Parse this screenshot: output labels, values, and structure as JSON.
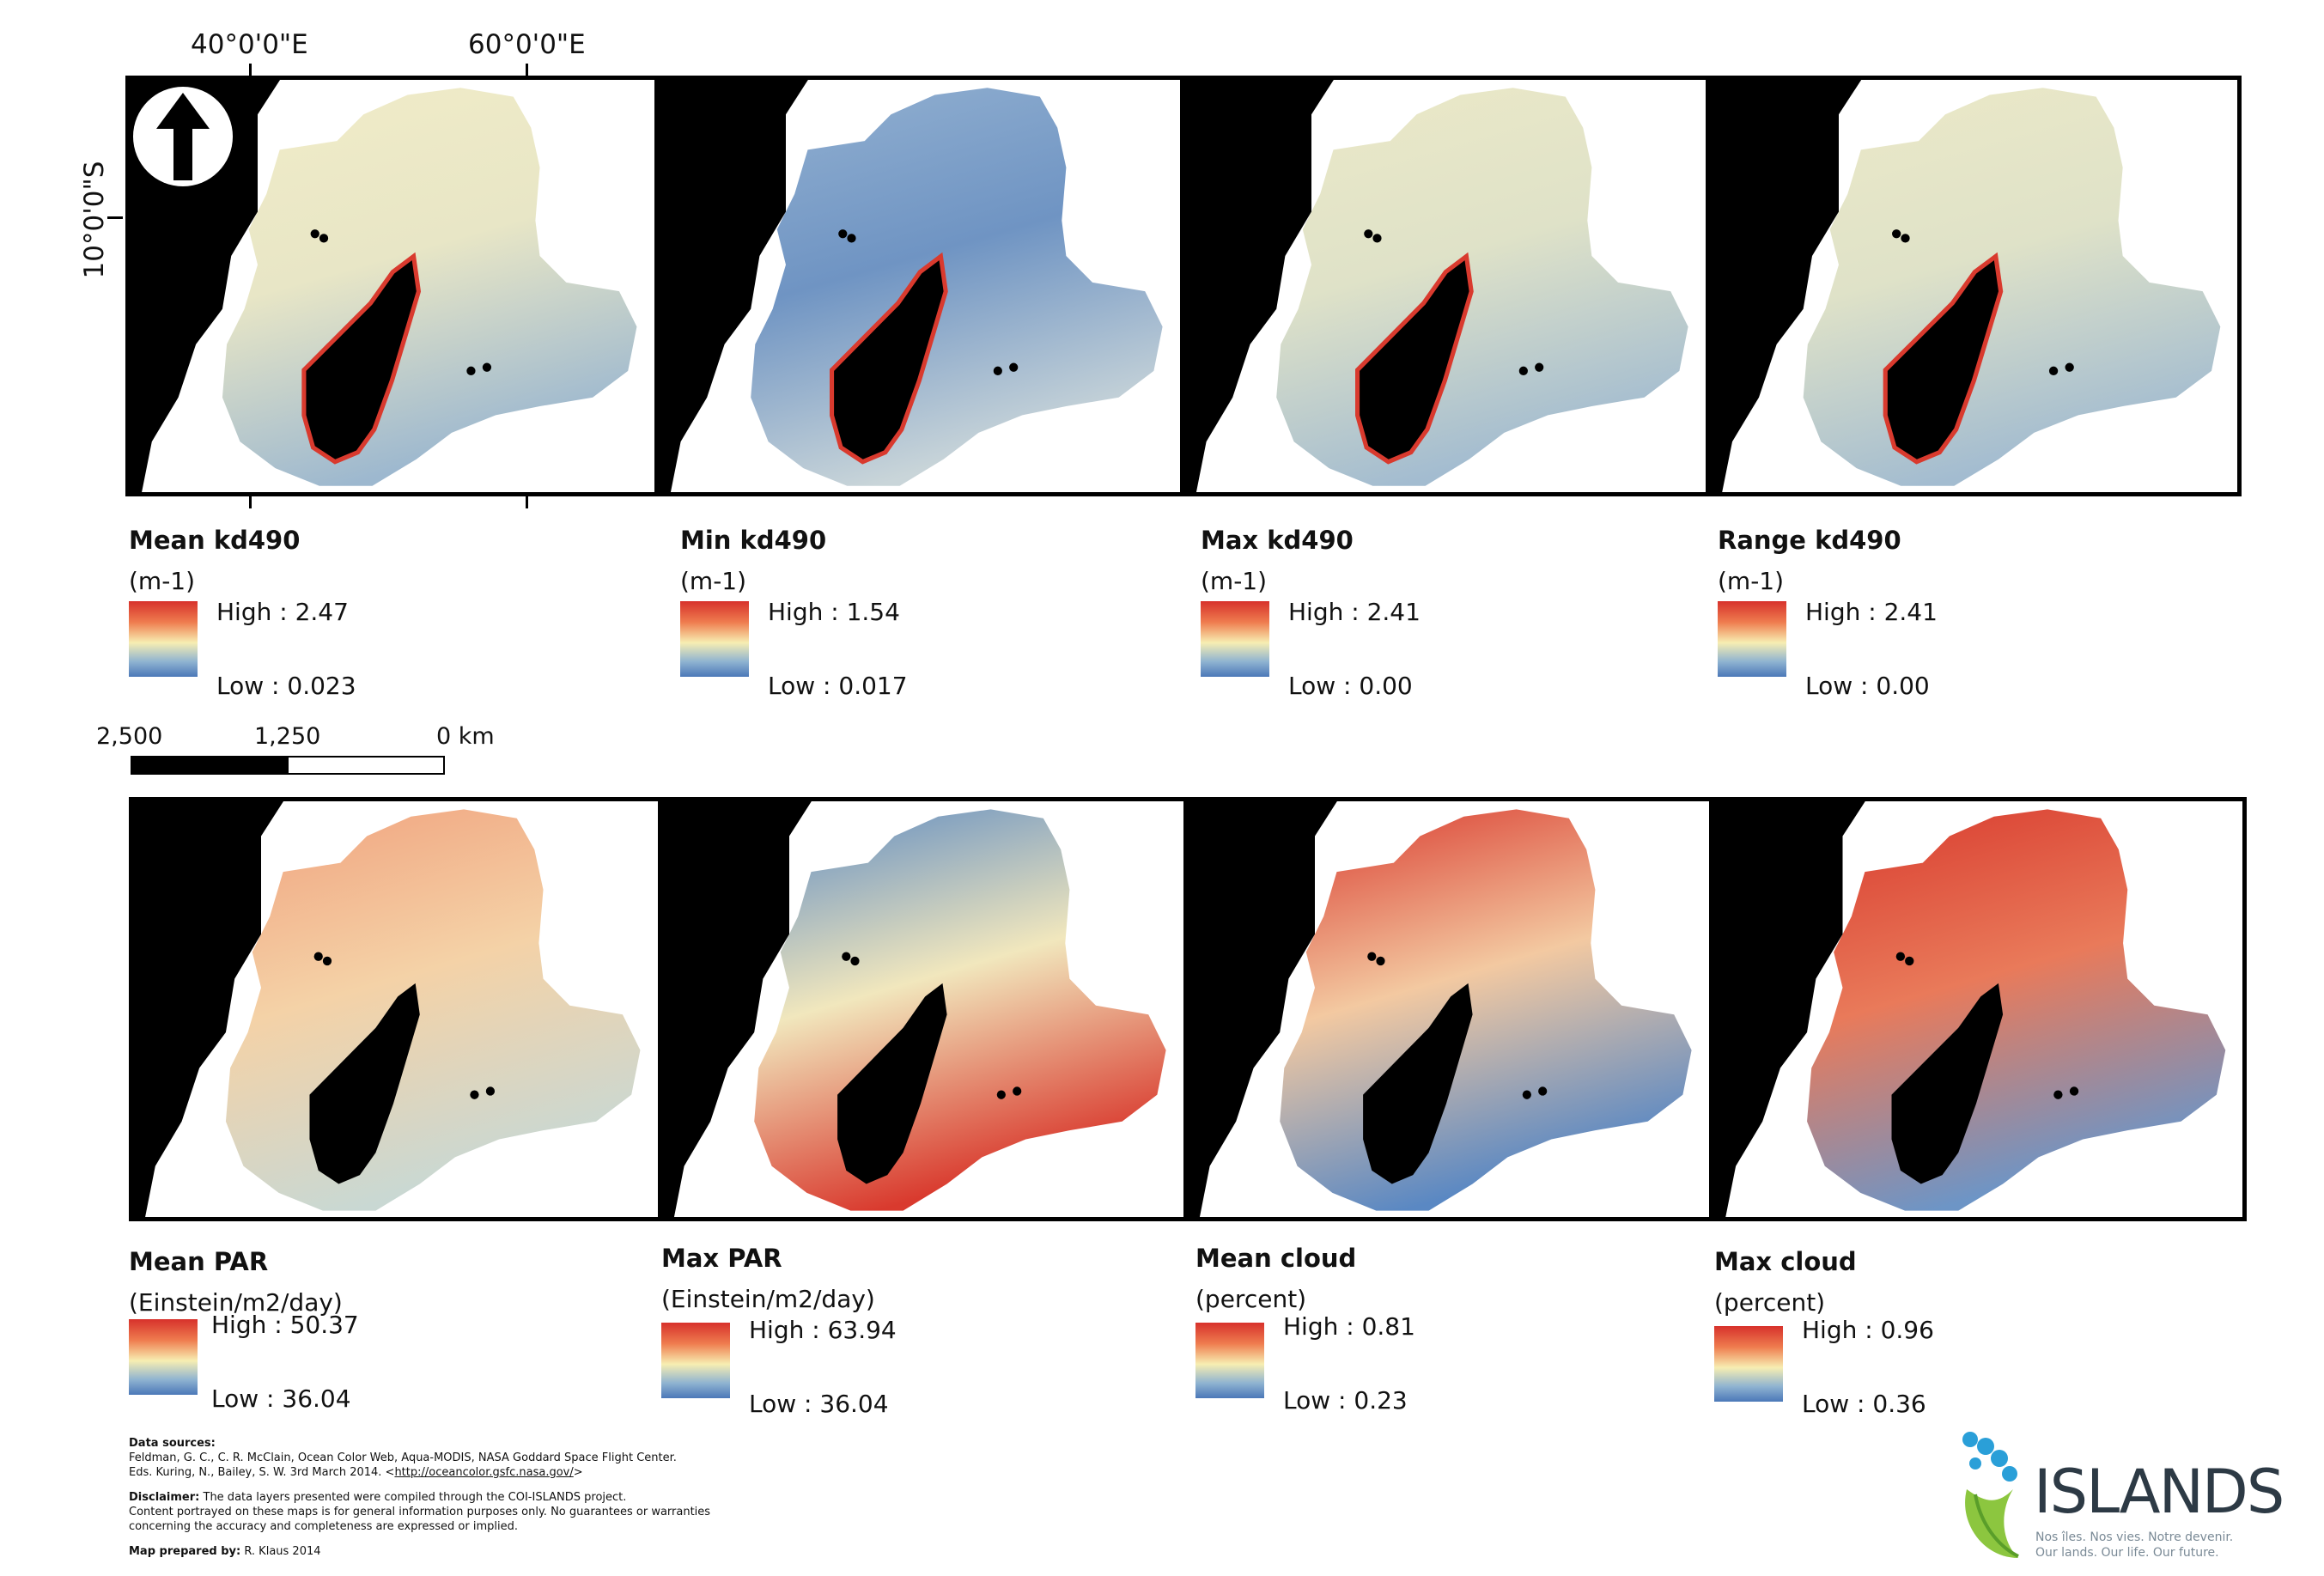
{
  "graticule": {
    "lon1": "40°0'0\"E",
    "lon2": "60°0'0\"E",
    "lat1": "10°0'0\"S"
  },
  "panels": [
    {
      "title": "Mean kd490",
      "unit": "(m-1)",
      "high": "High : 2.47",
      "low": "Low : 0.023",
      "palette": [
        "#f1ecc8",
        "#e8e6c6",
        "#9db8cf"
      ]
    },
    {
      "title": "Min kd490",
      "unit": "(m-1)",
      "high": "High : 1.54",
      "low": "Low : 0.017",
      "palette": [
        "#93b1d1",
        "#6f94c3",
        "#c9d5d9"
      ]
    },
    {
      "title": "Max kd490",
      "unit": "(m-1)",
      "high": "High : 2.41",
      "low": "Low : 0.00",
      "palette": [
        "#ece9c7",
        "#dfe2c8",
        "#a3bcd0"
      ]
    },
    {
      "title": "Range kd490",
      "unit": "(m-1)",
      "high": "High : 2.41",
      "low": "Low : 0.00",
      "palette": [
        "#ece9c7",
        "#dfe2c8",
        "#a3bcd0"
      ]
    },
    {
      "title": "Mean PAR",
      "unit": "(Einstein/m2/day)",
      "high": "High : 50.37",
      "low": "Low : 36.04",
      "palette": [
        "#f1a17d",
        "#f4d2a7",
        "#c9d8d3"
      ]
    },
    {
      "title": "Max PAR",
      "unit": "(Einstein/m2/day)",
      "high": "High : 63.94",
      "low": "Low : 36.04",
      "palette": [
        "#5c89c2",
        "#f1e7bd",
        "#d93a2e"
      ]
    },
    {
      "title": "Mean cloud",
      "unit": "(percent)",
      "high": "High : 0.81",
      "low": "Low : 0.23",
      "palette": [
        "#d9372c",
        "#f3c9a1",
        "#5a88c3"
      ]
    },
    {
      "title": "Max cloud",
      "unit": "(percent)",
      "high": "High : 0.96",
      "low": "Low : 0.36",
      "palette": [
        "#d8392d",
        "#e97a5a",
        "#6d95c6"
      ]
    }
  ],
  "scalebar": {
    "left": "2,500",
    "mid": "1,250",
    "right": "0 km"
  },
  "credits": {
    "sources_label": "Data sources:",
    "sources_line1": "Feldman, G. C., C. R. McClain, Ocean Color Web, Aqua-MODIS, NASA Goddard Space Flight Center.",
    "sources_line2_a": "Eds. Kuring, N., Bailey, S. W. 3rd March 2014. <",
    "sources_link": "http://oceancolor.gsfc.nasa.gov/",
    "sources_line2_b": ">",
    "disclaimer_label": "Disclaimer:",
    "disclaimer_line1": "The data layers presented were compiled through the COI-ISLANDS project.",
    "disclaimer_line2": "Content portrayed on these maps is for general information purposes only. No guarantees or warranties",
    "disclaimer_line3": "concerning the accuracy and completeness are expressed or implied.",
    "prepared_label": "Map prepared by:",
    "prepared_value": "R. Klaus 2014"
  },
  "logo": {
    "wordmark": "ISLANDS",
    "tagline1": "Nos îles. Nos vies. Notre devenir.",
    "tagline2": "Our lands. Our life. Our future."
  }
}
